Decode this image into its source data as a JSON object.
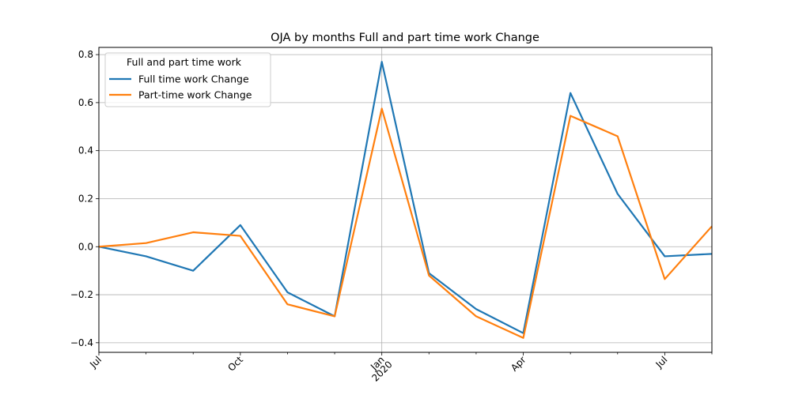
{
  "chart_data": {
    "type": "line",
    "title": "OJA by months Full and part time work Change",
    "xlabel": "",
    "ylabel": "",
    "x": [
      "2019-07",
      "2019-08",
      "2019-09",
      "2019-10",
      "2019-11",
      "2019-12",
      "2020-01",
      "2020-02",
      "2020-03",
      "2020-04",
      "2020-05",
      "2020-06",
      "2020-07",
      "2020-08"
    ],
    "x_ticks": [
      {
        "x": "2019-07",
        "label": "Jul",
        "sublabel": ""
      },
      {
        "x": "2019-10",
        "label": "Oct",
        "sublabel": ""
      },
      {
        "x": "2020-01",
        "label": "Jan",
        "sublabel": "2020"
      },
      {
        "x": "2020-04",
        "label": "Apr",
        "sublabel": ""
      },
      {
        "x": "2020-07",
        "label": "Jul",
        "sublabel": ""
      }
    ],
    "ylim": [
      -0.44,
      0.83
    ],
    "y_ticks": [
      -0.4,
      -0.2,
      0.0,
      0.2,
      0.4,
      0.6,
      0.8
    ],
    "y_tick_labels": [
      "−0.4",
      "−0.2",
      "0.0",
      "0.2",
      "0.4",
      "0.6",
      "0.8"
    ],
    "grid": "y-axis and Jan 2020",
    "legend": {
      "title": "Full and part time work",
      "position": "upper-left"
    },
    "series": [
      {
        "name": "Full time work Change",
        "color": "#1f77b4",
        "values": [
          0.0,
          -0.04,
          -0.1,
          0.09,
          -0.19,
          -0.29,
          0.77,
          -0.11,
          -0.26,
          -0.36,
          0.64,
          0.22,
          -0.04,
          -0.03
        ]
      },
      {
        "name": "Part-time work Change",
        "color": "#ff7f0e",
        "values": [
          0.0,
          0.015,
          0.06,
          0.045,
          -0.24,
          -0.29,
          0.575,
          -0.12,
          -0.29,
          -0.38,
          0.545,
          0.46,
          -0.135,
          0.085
        ]
      }
    ]
  }
}
